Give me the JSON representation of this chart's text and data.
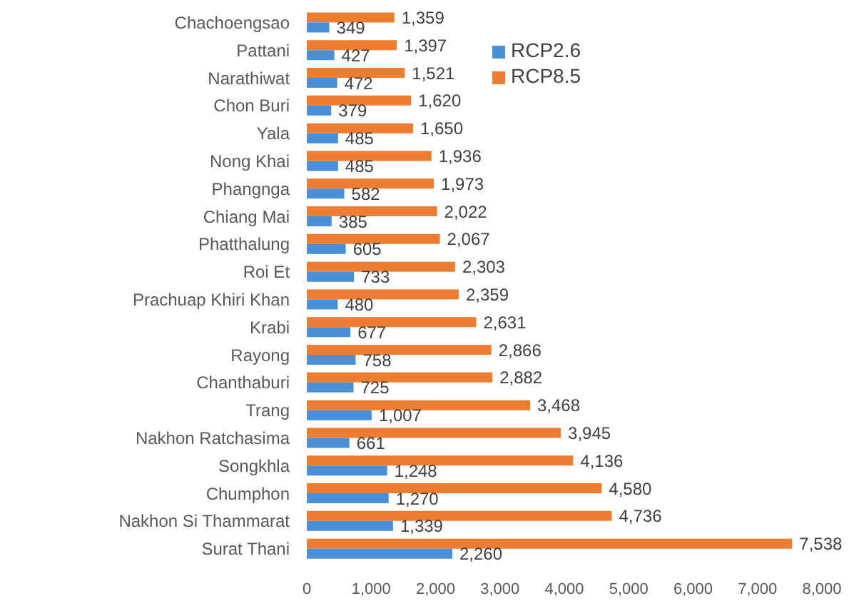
{
  "chart_data": {
    "type": "bar",
    "orientation": "horizontal",
    "categories": [
      "Chachoengsao",
      "Pattani",
      "Narathiwat",
      "Chon Buri",
      "Yala",
      "Nong Khai",
      "Phangnga",
      "Chiang Mai",
      "Phatthalung",
      "Roi Et",
      "Prachuap Khiri Khan",
      "Krabi",
      "Rayong",
      "Chanthaburi",
      "Trang",
      "Nakhon Ratchasima",
      "Songkhla",
      "Chumphon",
      "Nakhon Si Thammarat",
      "Surat Thani"
    ],
    "series": [
      {
        "name": "RCP2.6",
        "color": "#4a90d9",
        "values": [
          349,
          427,
          472,
          379,
          485,
          485,
          582,
          385,
          605,
          733,
          480,
          677,
          758,
          725,
          1007,
          661,
          1248,
          1270,
          1339,
          2260
        ],
        "value_labels": [
          "349",
          "427",
          "472",
          "379",
          "485",
          "485",
          "582",
          "385",
          "605",
          "733",
          "480",
          "677",
          "758",
          "725",
          "1,007",
          "661",
          "1,248",
          "1,270",
          "1,339",
          "2,260"
        ]
      },
      {
        "name": "RCP8.5",
        "color": "#ed7d31",
        "values": [
          1359,
          1397,
          1521,
          1620,
          1650,
          1936,
          1973,
          2022,
          2067,
          2303,
          2359,
          2631,
          2866,
          2882,
          3468,
          3945,
          4136,
          4580,
          4736,
          7538
        ],
        "value_labels": [
          "1,359",
          "1,397",
          "1,521",
          "1,620",
          "1,650",
          "1,936",
          "1,973",
          "2,022",
          "2,067",
          "2,303",
          "2,359",
          "2,631",
          "2,866",
          "2,882",
          "3,468",
          "3,945",
          "4,136",
          "4,580",
          "4,736",
          "7,538"
        ]
      }
    ],
    "xlim": [
      0,
      8000
    ],
    "xticks": [
      0,
      {
        "value": 1000,
        "label": "1,000"
      },
      {
        "value": 2000,
        "label": "2,000"
      },
      {
        "value": 3000,
        "label": "3,000"
      },
      {
        "value": 4000,
        "label": "4,000"
      },
      {
        "value": 5000,
        "label": "5,000"
      },
      {
        "value": 6000,
        "label": "6,000"
      },
      {
        "value": 7000,
        "label": "7,000"
      },
      {
        "value": 8000,
        "label": "8,000"
      }
    ],
    "legend": "top"
  }
}
